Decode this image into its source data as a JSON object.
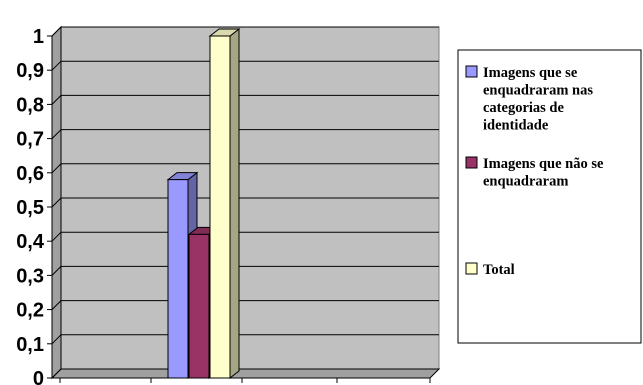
{
  "chart_data": {
    "type": "bar",
    "style": "3d-clustered-column",
    "categories": [
      ""
    ],
    "series": [
      {
        "name_lines": [
          "Imagens que se",
          "enquadraram nas",
          "categorias de",
          "identidade"
        ],
        "values": [
          0.58
        ],
        "color": "#9999ff"
      },
      {
        "name_lines": [
          "Imagens que não se",
          "enquadraram"
        ],
        "values": [
          0.42
        ],
        "color": "#993366"
      },
      {
        "name_lines": [
          "Total"
        ],
        "values": [
          1.0
        ],
        "color": "#ffffcc"
      }
    ],
    "ylim": [
      0,
      1
    ],
    "yticks": [
      "0",
      "0,1",
      "0,2",
      "0,3",
      "0,4",
      "0,5",
      "0,6",
      "0,7",
      "0,8",
      "0,9",
      "1"
    ],
    "grid": true,
    "plot_background": "#c0c0c0",
    "legend_position": "right"
  }
}
